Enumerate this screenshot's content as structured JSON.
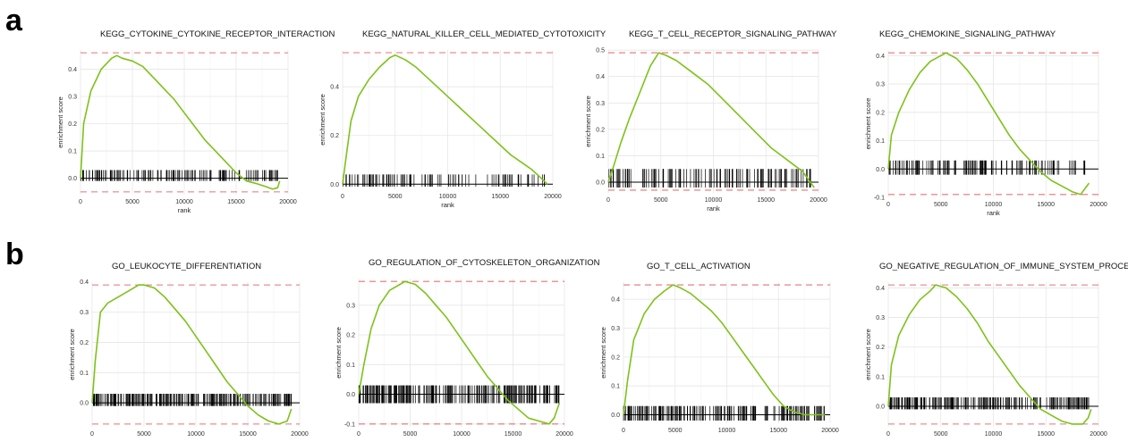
{
  "figure": {
    "rows": [
      {
        "letter": "a"
      },
      {
        "letter": "b"
      }
    ]
  },
  "colors": {
    "curve": "#7ec21a",
    "threshold": "#e57373",
    "grid": "#e6e6e6",
    "hits": "#000000"
  },
  "chart_data": [
    {
      "type": "line",
      "title": "KEGG_CYTOKINE_CYTOKINE_RECEPTOR_INTERACTION",
      "xlabel": "rank",
      "ylabel": "enrichment score",
      "xlim": [
        0,
        20000
      ],
      "ylim": [
        -0.05,
        0.46
      ],
      "xticks": [
        0,
        5000,
        10000,
        15000,
        20000
      ],
      "yticks": [
        0.0,
        0.1,
        0.2,
        0.3,
        0.4
      ],
      "grid": true,
      "threshold_lines": [
        0.46,
        -0.05
      ],
      "hit_band": [
        -0.01,
        0.03
      ],
      "hit_range": [
        0,
        19200
      ],
      "hit_density": 0.55,
      "series": [
        {
          "x": [
            0,
            300,
            1000,
            2000,
            3000,
            3500,
            4000,
            5000,
            6000,
            7000,
            8000,
            9000,
            10000,
            11000,
            12000,
            13000,
            14000,
            15000,
            16000,
            17000,
            17800,
            18500,
            19000,
            19200
          ],
          "values": [
            0.0,
            0.2,
            0.32,
            0.4,
            0.44,
            0.45,
            0.44,
            0.43,
            0.41,
            0.37,
            0.33,
            0.29,
            0.24,
            0.19,
            0.14,
            0.1,
            0.06,
            0.02,
            -0.01,
            -0.02,
            -0.03,
            -0.04,
            -0.035,
            -0.01
          ]
        }
      ]
    },
    {
      "type": "line",
      "title": "KEGG_NATURAL_KILLER_CELL_MEDIATED_CYTOTOXICITY",
      "xlabel": "rank",
      "ylabel": "enrichment score",
      "xlim": [
        0,
        20000
      ],
      "ylim": [
        -0.01,
        0.54
      ],
      "xticks": [
        0,
        5000,
        10000,
        15000,
        20000
      ],
      "yticks": [
        0.0,
        0.2,
        0.4
      ],
      "grid": true,
      "threshold_lines": [
        0.54
      ],
      "hit_band": [
        -0.01,
        0.04
      ],
      "hit_range": [
        0,
        19200
      ],
      "hit_density": 0.4,
      "series": [
        {
          "x": [
            0,
            300,
            800,
            1500,
            2500,
            3500,
            4500,
            5000,
            6000,
            7000,
            8000,
            9000,
            10000,
            11000,
            12000,
            13000,
            14000,
            15000,
            16000,
            17000,
            18000,
            19000,
            19500
          ],
          "values": [
            0.0,
            0.1,
            0.26,
            0.36,
            0.43,
            0.48,
            0.52,
            0.53,
            0.51,
            0.48,
            0.44,
            0.4,
            0.36,
            0.32,
            0.28,
            0.24,
            0.2,
            0.16,
            0.12,
            0.09,
            0.06,
            0.02,
            0.0
          ]
        }
      ]
    },
    {
      "type": "line",
      "title": "KEGG_T_CELL_RECEPTOR_SIGNALING_PATHWAY",
      "xlabel": "rank",
      "ylabel": "enrichment score",
      "xlim": [
        0,
        20000
      ],
      "ylim": [
        -0.03,
        0.49
      ],
      "xticks": [
        0,
        5000,
        10000,
        15000,
        20000
      ],
      "yticks": [
        0.0,
        0.1,
        0.2,
        0.3,
        0.4,
        0.5
      ],
      "grid": true,
      "threshold_lines": [
        0.49,
        -0.03
      ],
      "hit_band": [
        -0.02,
        0.05
      ],
      "hit_range": [
        0,
        19500
      ],
      "hit_density": 0.5,
      "series": [
        {
          "x": [
            0,
            500,
            1200,
            2000,
            3000,
            4000,
            4800,
            5500,
            6500,
            7500,
            8500,
            9500,
            10500,
            11500,
            12500,
            13500,
            14500,
            15500,
            16500,
            17500,
            18500,
            19200,
            19600
          ],
          "values": [
            0.0,
            0.06,
            0.15,
            0.24,
            0.34,
            0.44,
            0.49,
            0.48,
            0.46,
            0.43,
            0.4,
            0.37,
            0.33,
            0.29,
            0.25,
            0.21,
            0.17,
            0.13,
            0.1,
            0.07,
            0.04,
            0.0,
            -0.02
          ]
        }
      ]
    },
    {
      "type": "line",
      "title": "KEGG_CHEMOKINE_SIGNALING_PATHWAY",
      "xlabel": "rank",
      "ylabel": "enrichment score",
      "xlim": [
        0,
        20000
      ],
      "ylim": [
        -0.09,
        0.41
      ],
      "xticks": [
        0,
        5000,
        10000,
        15000,
        20000
      ],
      "yticks": [
        -0.1,
        0.0,
        0.1,
        0.2,
        0.3,
        0.4
      ],
      "grid": true,
      "threshold_lines": [
        0.41,
        -0.09
      ],
      "hit_band": [
        -0.02,
        0.03
      ],
      "hit_range": [
        0,
        19200
      ],
      "hit_density": 0.5,
      "series": [
        {
          "x": [
            0,
            300,
            1000,
            2000,
            3000,
            4000,
            5000,
            5500,
            6500,
            7500,
            8500,
            9500,
            10500,
            11500,
            12500,
            13500,
            14500,
            15500,
            16500,
            17500,
            18300,
            18700,
            19100
          ],
          "values": [
            0.0,
            0.12,
            0.2,
            0.28,
            0.34,
            0.38,
            0.4,
            0.41,
            0.39,
            0.35,
            0.3,
            0.24,
            0.18,
            0.12,
            0.07,
            0.03,
            -0.01,
            -0.04,
            -0.06,
            -0.08,
            -0.09,
            -0.07,
            -0.05
          ]
        }
      ]
    },
    {
      "type": "line",
      "title": "GO_LEUKOCYTE_DIFFERENTIATION",
      "xlabel": "",
      "ylabel": "enrichment score",
      "xlim": [
        0,
        20000
      ],
      "ylim": [
        -0.07,
        0.39
      ],
      "xticks": [
        0,
        5000,
        10000,
        15000,
        20000
      ],
      "yticks": [
        0.0,
        0.1,
        0.2,
        0.3,
        0.4
      ],
      "grid": true,
      "threshold_lines": [
        0.39,
        -0.07
      ],
      "hit_band": [
        -0.01,
        0.03
      ],
      "hit_range": [
        0,
        19200
      ],
      "hit_density": 0.95,
      "series": [
        {
          "x": [
            0,
            300,
            800,
            1500,
            2500,
            3500,
            4500,
            5000,
            6000,
            7000,
            8000,
            9000,
            10000,
            11000,
            12000,
            13000,
            14000,
            15000,
            16000,
            17000,
            18000,
            18800,
            19200
          ],
          "values": [
            0.0,
            0.14,
            0.3,
            0.33,
            0.35,
            0.37,
            0.39,
            0.39,
            0.38,
            0.35,
            0.31,
            0.27,
            0.22,
            0.17,
            0.12,
            0.07,
            0.03,
            -0.01,
            -0.04,
            -0.06,
            -0.07,
            -0.06,
            -0.02
          ]
        }
      ]
    },
    {
      "type": "line",
      "title": "GO_REGULATION_OF_CYTOSKELETON_ORGANIZATION",
      "xlabel": "",
      "ylabel": "enrichment score",
      "xlim": [
        0,
        20000
      ],
      "ylim": [
        -0.1,
        0.38
      ],
      "xticks": [
        0,
        5000,
        10000,
        15000,
        20000
      ],
      "yticks": [
        -0.1,
        0.0,
        0.1,
        0.2,
        0.3,
        0.4
      ],
      "grid": true,
      "threshold_lines": [
        0.38,
        -0.1
      ],
      "hit_band": [
        -0.03,
        0.03
      ],
      "hit_range": [
        0,
        19500
      ],
      "hit_density": 0.9,
      "series": [
        {
          "x": [
            0,
            500,
            1200,
            2000,
            3000,
            4000,
            4500,
            5500,
            6500,
            7500,
            8500,
            9500,
            10500,
            11500,
            12500,
            13500,
            14500,
            15500,
            16500,
            17500,
            18500,
            19000,
            19500
          ],
          "values": [
            0.0,
            0.1,
            0.22,
            0.3,
            0.35,
            0.37,
            0.38,
            0.37,
            0.34,
            0.3,
            0.26,
            0.21,
            0.16,
            0.11,
            0.06,
            0.02,
            -0.02,
            -0.05,
            -0.08,
            -0.09,
            -0.1,
            -0.08,
            -0.03
          ]
        }
      ]
    },
    {
      "type": "line",
      "title": "GO_T_CELL_ACTIVATION",
      "xlabel": "",
      "ylabel": "enrichment score",
      "xlim": [
        0,
        20000
      ],
      "ylim": [
        -0.02,
        0.45
      ],
      "xticks": [
        0,
        5000,
        10000,
        15000,
        20000
      ],
      "yticks": [
        0.0,
        0.1,
        0.2,
        0.3,
        0.4
      ],
      "grid": true,
      "threshold_lines": [
        0.45
      ],
      "hit_band": [
        -0.02,
        0.03
      ],
      "hit_range": [
        0,
        19500
      ],
      "hit_density": 0.7,
      "series": [
        {
          "x": [
            0,
            400,
            1000,
            2000,
            3000,
            4000,
            4800,
            5500,
            6500,
            7500,
            8500,
            9500,
            10500,
            11500,
            12500,
            13500,
            14500,
            15500,
            16500,
            17500,
            18500,
            19500
          ],
          "values": [
            0.0,
            0.12,
            0.26,
            0.35,
            0.4,
            0.43,
            0.45,
            0.44,
            0.42,
            0.39,
            0.36,
            0.32,
            0.27,
            0.22,
            0.17,
            0.12,
            0.07,
            0.03,
            0.01,
            0.0,
            0.0,
            0.0
          ]
        }
      ]
    },
    {
      "type": "line",
      "title": "GO_NEGATIVE_REGULATION_OF_IMMUNE_SYSTEM_PROCESS",
      "xlabel": "",
      "ylabel": "enrichment score",
      "xlim": [
        0,
        20000
      ],
      "ylim": [
        -0.06,
        0.41
      ],
      "xticks": [
        0,
        5000,
        10000,
        15000,
        20000
      ],
      "yticks": [
        0.0,
        0.1,
        0.2,
        0.3,
        0.4
      ],
      "grid": true,
      "threshold_lines": [
        0.41,
        -0.06
      ],
      "hit_band": [
        -0.01,
        0.03
      ],
      "hit_range": [
        0,
        19200
      ],
      "hit_density": 0.85,
      "series": [
        {
          "x": [
            0,
            300,
            1000,
            2000,
            3000,
            4000,
            4500,
            5500,
            6500,
            7500,
            8500,
            9500,
            10500,
            11500,
            12500,
            13500,
            14500,
            15500,
            16500,
            17500,
            18500,
            19000,
            19300
          ],
          "values": [
            0.0,
            0.14,
            0.24,
            0.31,
            0.36,
            0.39,
            0.41,
            0.4,
            0.37,
            0.33,
            0.28,
            0.22,
            0.17,
            0.12,
            0.07,
            0.03,
            -0.01,
            -0.03,
            -0.05,
            -0.06,
            -0.06,
            -0.04,
            -0.01
          ]
        }
      ]
    }
  ]
}
